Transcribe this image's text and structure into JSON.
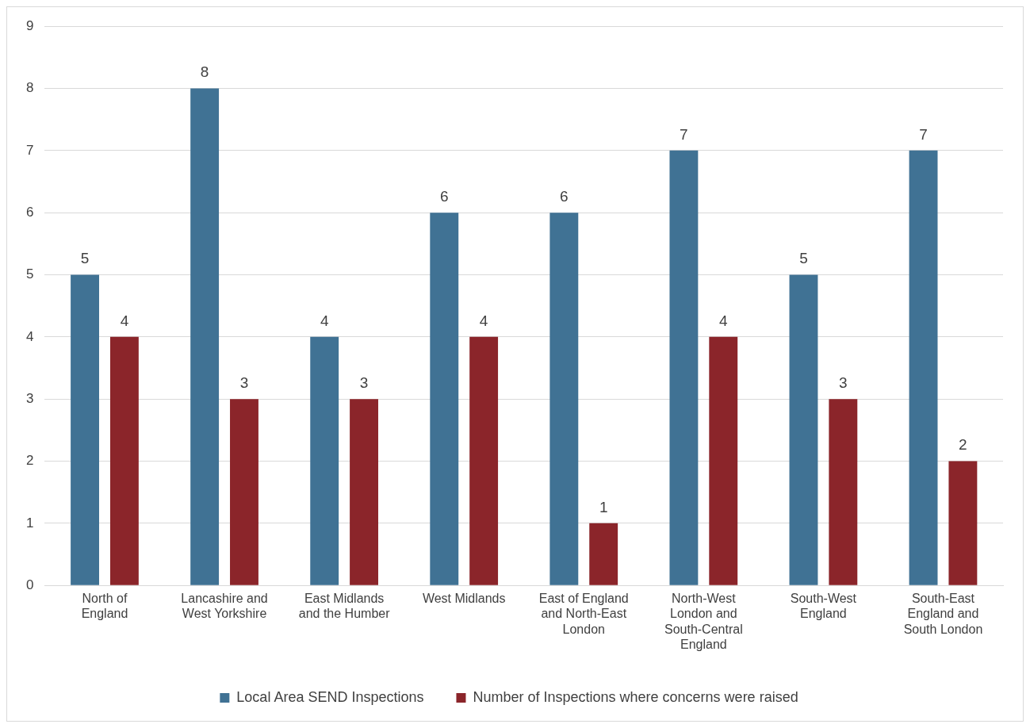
{
  "chart_data": {
    "type": "bar",
    "categories": [
      "North of England",
      "Lancashire and West Yorkshire",
      "East Midlands and the Humber",
      "West Midlands",
      "East of England and North-East London",
      "North-West London and South-Central England",
      "South-West England",
      "South-East England and South London"
    ],
    "series": [
      {
        "name": "Local Area SEND Inspections",
        "color": "#407294",
        "values": [
          5,
          8,
          4,
          6,
          6,
          7,
          5,
          7
        ]
      },
      {
        "name": "Number of Inspections where concerns were raised",
        "color": "#8b252a",
        "values": [
          4,
          3,
          3,
          4,
          1,
          4,
          3,
          2
        ]
      }
    ],
    "ylim": [
      0,
      9
    ],
    "yticks": [
      0,
      1,
      2,
      3,
      4,
      5,
      6,
      7,
      8,
      9
    ],
    "grid": "y",
    "legend": "bottom",
    "data_labels": true
  }
}
